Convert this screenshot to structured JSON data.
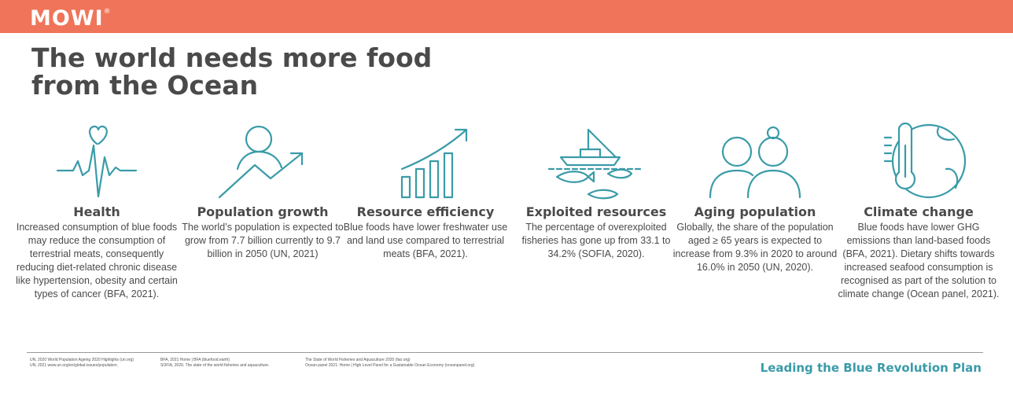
{
  "brand": {
    "logo": "MOWI",
    "reg": "®",
    "color": "#f07459",
    "accent": "#3a9ba8"
  },
  "title": {
    "line1": "The world needs more food",
    "line2": "from the Ocean"
  },
  "columns": [
    {
      "icon": "heartbeat-icon",
      "heading": "Health",
      "text": "Increased consumption of blue foods may reduce the consumption of terrestrial meats, consequently reducing diet-related chronic disease like hypertension, obesity and certain types of cancer (BFA, 2021)."
    },
    {
      "icon": "population-growth-icon",
      "heading": "Population growth",
      "text": "The world’s population is expected to grow from 7.7 billion currently to 9.7 billion in 2050 (UN, 2021)"
    },
    {
      "icon": "bar-chart-arrow-icon",
      "heading": "Resource efficiency",
      "text": "Blue foods have lower freshwater use and land use compared to terrestrial meats (BFA, 2021)."
    },
    {
      "icon": "fishing-boat-icon",
      "heading": "Exploited resources",
      "text": "The percentage of overexploited fisheries has gone up from 33.1 to 34.2% (SOFIA, 2020)."
    },
    {
      "icon": "elderly-couple-icon",
      "heading": "Aging population",
      "text": "Globally, the share of the population aged ≥ 65 years is expected to increase from 9.3% in 2020 to around 16.0% in 2050 (UN, 2020)."
    },
    {
      "icon": "thermometer-globe-icon",
      "heading": "Climate change",
      "text": "Blue foods have lower GHG emissions than land-based foods (BFA, 2021). Dietary shifts towards increased seafood consumption is recognised as part of the solution to climate change (Ocean panel, 2021)."
    }
  ],
  "references": [
    [
      "UN, 2020 World Population Ageing 2020 Highlights (un.org)",
      "UN, 2021 www.un.org/en/global-issues/population."
    ],
    [
      "BFA, 2021 Home | BFA (bluefood.earth)",
      "SOFIA, 2020. The state of the world fisheries and aquaculture."
    ],
    [
      "The State of World Fisheries and Aquaculture 2020 (fao.org)",
      "Ocean panel 2021. Home | High Level Panel for a Sustainable Ocean Economy (oceanpanel.org)"
    ]
  ],
  "tagline": "Leading the Blue Revolution Plan"
}
